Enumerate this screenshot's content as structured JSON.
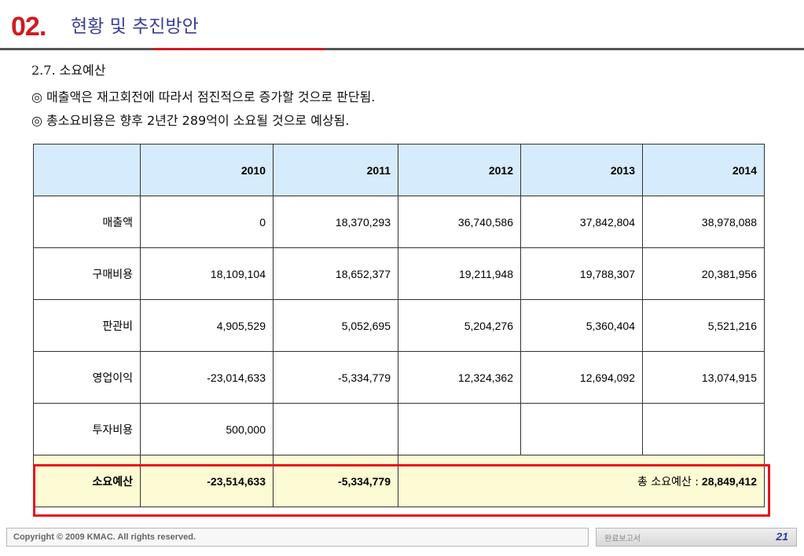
{
  "header": {
    "number": "02.",
    "title": "현황 및 추진방안"
  },
  "section": {
    "title": "2.7. 소요예산"
  },
  "bullets": [
    "◎ 매출액은 재고회전에 따라서 점진적으로 증가할 것으로 판단됨.",
    "◎ 총소요비용은 향후 2년간 289억이 소요될 것으로 예상됨."
  ],
  "table": {
    "years": [
      "2010",
      "2011",
      "2012",
      "2013",
      "2014"
    ],
    "rows": [
      {
        "label": "매출액",
        "values": [
          "0",
          "18,370,293",
          "36,740,586",
          "37,842,804",
          "38,978,088"
        ]
      },
      {
        "label": "구매비용",
        "values": [
          "18,109,104",
          "18,652,377",
          "19,211,948",
          "19,788,307",
          "20,381,956"
        ]
      },
      {
        "label": "판관비",
        "values": [
          "4,905,529",
          "5,052,695",
          "5,204,276",
          "5,360,404",
          "5,521,216"
        ]
      },
      {
        "label": "영업이익",
        "values": [
          "-23,014,633",
          "-5,334,779",
          "12,324,362",
          "12,694,092",
          "13,074,915"
        ]
      },
      {
        "label": "투자비용",
        "values": [
          "500,000",
          "",
          "",
          "",
          ""
        ]
      }
    ],
    "total": {
      "label": "소요예산",
      "values": [
        "-23,514,633",
        "-5,334,779"
      ],
      "summary_label": "총 소요예산 :",
      "summary_value": "28,849,412"
    }
  },
  "footer": {
    "copyright": "Copyright © 2009 KMAC. All rights reserved.",
    "doc_name": "완료보고서",
    "page": "21"
  },
  "colors": {
    "accent_red": "#d11a1f",
    "title_blue": "#3b3f98",
    "header_fill": "#d6ebfb",
    "total_fill": "#fdfbd3"
  }
}
